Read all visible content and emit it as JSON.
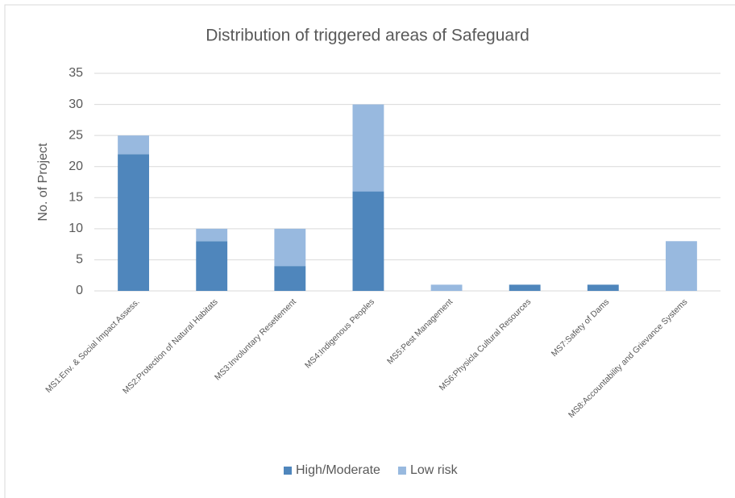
{
  "chart_data": {
    "type": "bar",
    "stacked": true,
    "title": "Distribution of triggered areas of Safeguard",
    "y_label": "No. of Project",
    "categories": [
      "MS1:Env. & Social Impact Assess.",
      "MS2:Protection of Natural Habitats",
      "MS3:Involuntary Resetlement",
      "MS4:Indigenous Peoples",
      "MS5:Pest Management",
      "MS6:Physicla Cultural Resources",
      "MS7:Safety of Dams",
      "MS8:Accountability and Grievance Systems"
    ],
    "series": [
      {
        "name": "High/Moderate",
        "color": "#4f86bc",
        "values": [
          22,
          8,
          4,
          16,
          0,
          1,
          1,
          0
        ]
      },
      {
        "name": "Low risk",
        "color": "#98b9df",
        "values": [
          3,
          2,
          6,
          14,
          1,
          0,
          0,
          8
        ]
      }
    ],
    "ylim": [
      0,
      35
    ],
    "yticks": [
      0,
      5,
      10,
      15,
      20,
      25,
      30,
      35
    ],
    "grid": true,
    "legend": "bottom"
  }
}
